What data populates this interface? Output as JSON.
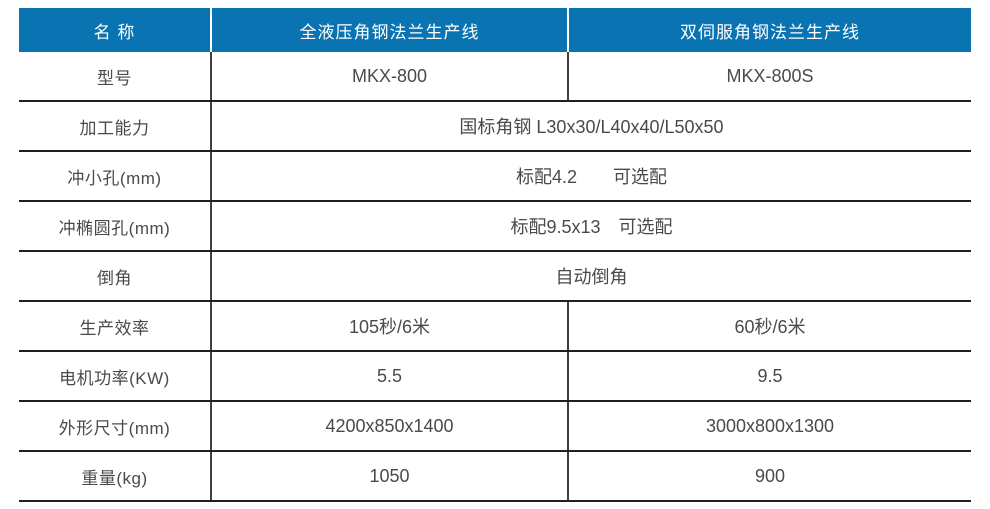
{
  "table": {
    "header": {
      "col1": "名 称",
      "col2": "全液压角钢法兰生产线",
      "col3": "双伺服角钢法兰生产线"
    },
    "rows": [
      {
        "label": "型号",
        "merged": false,
        "values": [
          "MKX-800",
          "MKX-800S"
        ]
      },
      {
        "label": "加工能力",
        "merged": true,
        "values": [
          "国标角钢 L30x30/L40x40/L50x50"
        ]
      },
      {
        "label": "冲小孔(mm)",
        "merged": true,
        "values": [
          "标配4.2　　可选配"
        ]
      },
      {
        "label": "冲椭圆孔(mm)",
        "merged": true,
        "values": [
          "标配9.5x13　可选配"
        ]
      },
      {
        "label": "倒角",
        "merged": true,
        "values": [
          "自动倒角"
        ]
      },
      {
        "label": "生产效率",
        "merged": false,
        "values": [
          "105秒/6米",
          "60秒/6米"
        ]
      },
      {
        "label": "电机功率(KW)",
        "merged": false,
        "values": [
          "5.5",
          "9.5"
        ]
      },
      {
        "label": "外形尺寸(mm)",
        "merged": false,
        "values": [
          "4200x850x1400",
          "3000x800x1300"
        ]
      },
      {
        "label": "重量(kg)",
        "merged": false,
        "values": [
          "1050",
          "900"
        ]
      }
    ],
    "colors": {
      "header_bg": "#0a73b2",
      "header_text": "#ffffff",
      "body_text": "#4a4a4a",
      "row_line": "#1f1f1f",
      "col_line": "#404040",
      "page_bg": "#ffffff"
    }
  }
}
